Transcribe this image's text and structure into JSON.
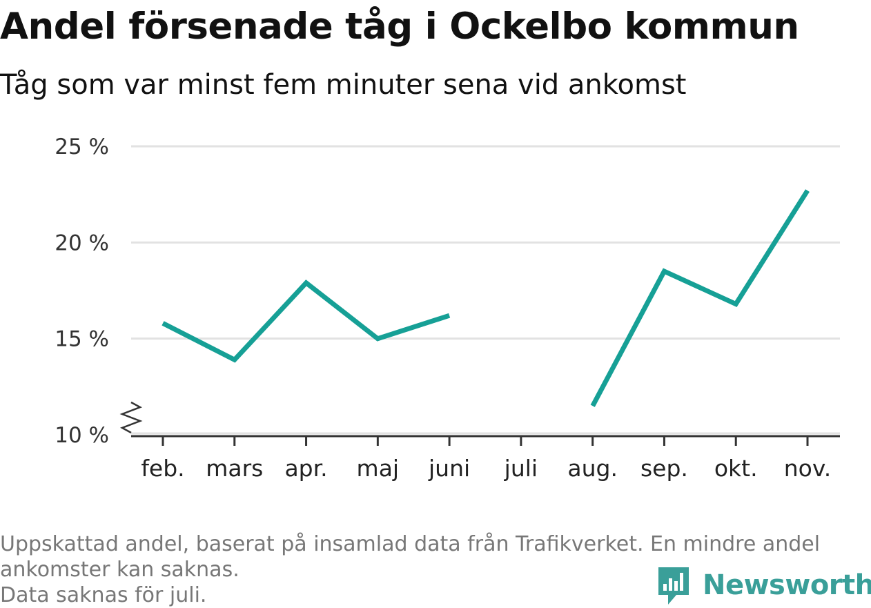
{
  "title": "Andel försenade tåg i Ockelbo kommun",
  "subtitle": "Tåg som var minst fem minuter sena vid ankomst",
  "footnote": {
    "line1": "Uppskattad andel, baserat på insamlad data från Trafikverket. En mindre andel",
    "line2": "ankomster kan saknas.",
    "line3": "Data saknas för juli."
  },
  "logo": {
    "text": "Newsworthy",
    "icon": "newsworthy-logo-icon",
    "color": "#3a9f99"
  },
  "colors": {
    "line": "#16a096",
    "grid": "#e2e2e2",
    "axis": "#333333"
  },
  "chart_data": {
    "type": "line",
    "title": "Andel försenade tåg i Ockelbo kommun",
    "subtitle": "Tåg som var minst fem minuter sena vid ankomst",
    "xlabel": "",
    "ylabel": "",
    "categories": [
      "feb.",
      "mars",
      "apr.",
      "maj",
      "juni",
      "juli",
      "aug.",
      "sep.",
      "okt.",
      "nov."
    ],
    "series": [
      {
        "values": [
          15.8,
          13.9,
          17.9,
          15.0,
          16.2,
          null,
          11.5,
          18.5,
          16.8,
          22.7
        ]
      }
    ],
    "ylim": [
      10,
      25
    ],
    "yticks": [
      10,
      15,
      20,
      25
    ],
    "ytick_labels": [
      "10 %",
      "15 %",
      "20 %",
      "25 %"
    ],
    "y_axis_break": true,
    "grid": true,
    "legend": "none"
  }
}
